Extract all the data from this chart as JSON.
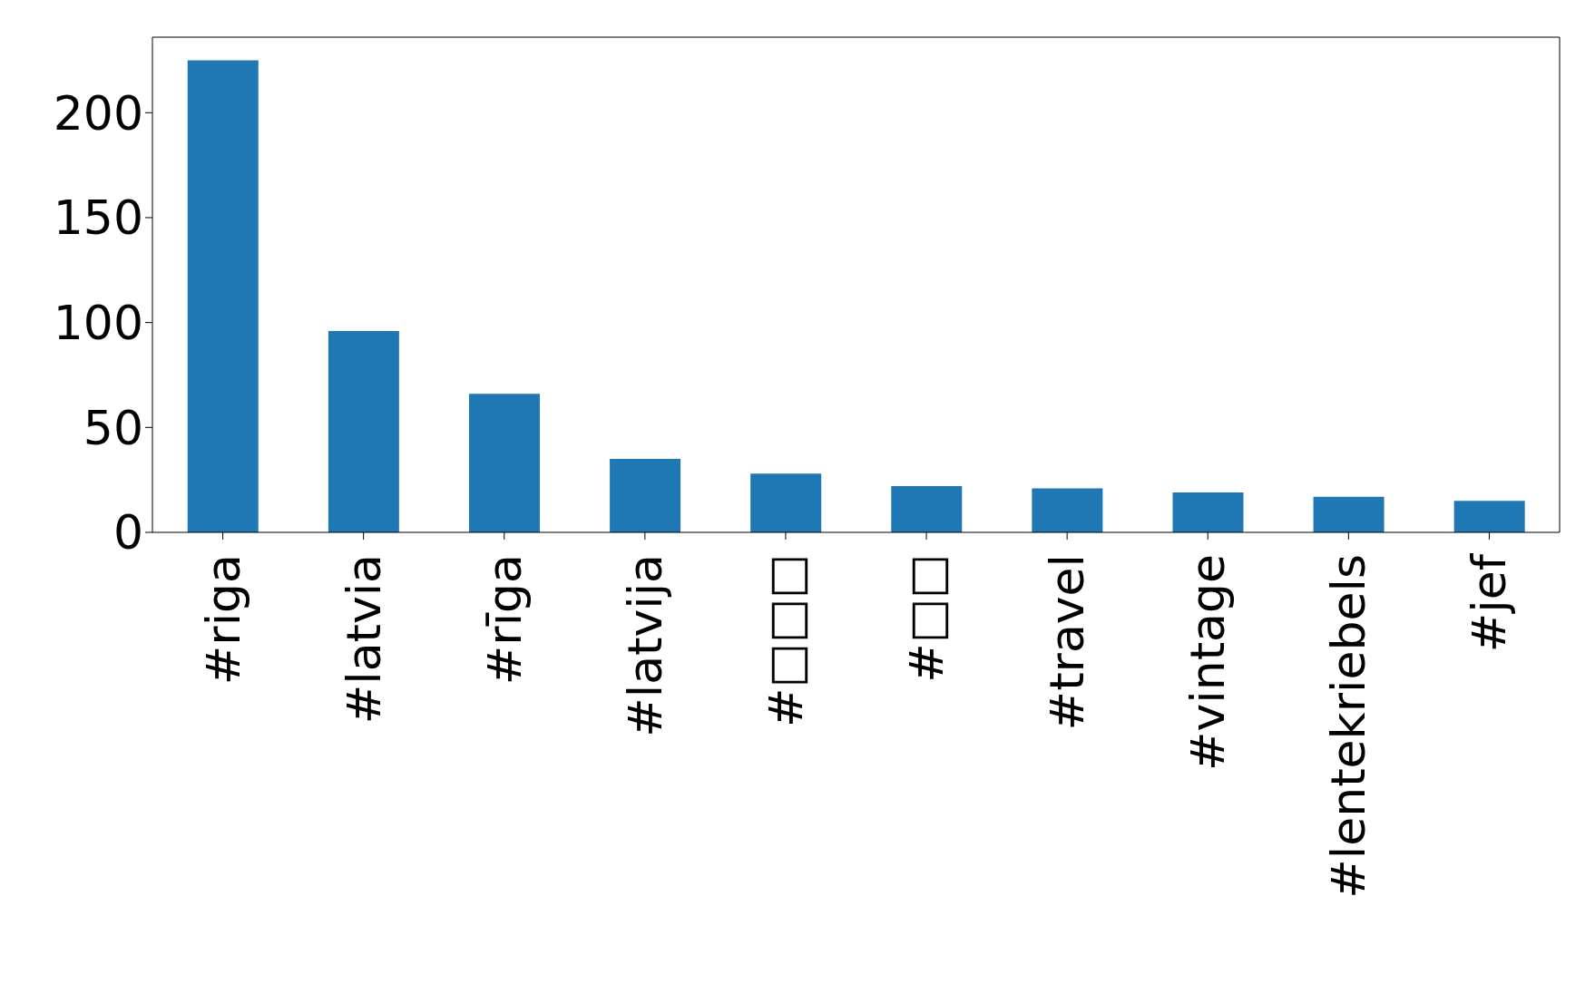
{
  "chart_data": {
    "type": "bar",
    "categories": [
      "#riga",
      "#latvia",
      "#rīga",
      "#latvija",
      "#□□□",
      "#□□",
      "#travel",
      "#vintage",
      "#lentekriebels",
      "#jef"
    ],
    "values": [
      225,
      96,
      66,
      35,
      28,
      22,
      21,
      19,
      17,
      15
    ],
    "color": "#1f77b4",
    "ylim": [
      0,
      236
    ],
    "yticks": [
      0,
      50,
      100,
      150,
      200
    ],
    "grid": false,
    "legend": false
  }
}
